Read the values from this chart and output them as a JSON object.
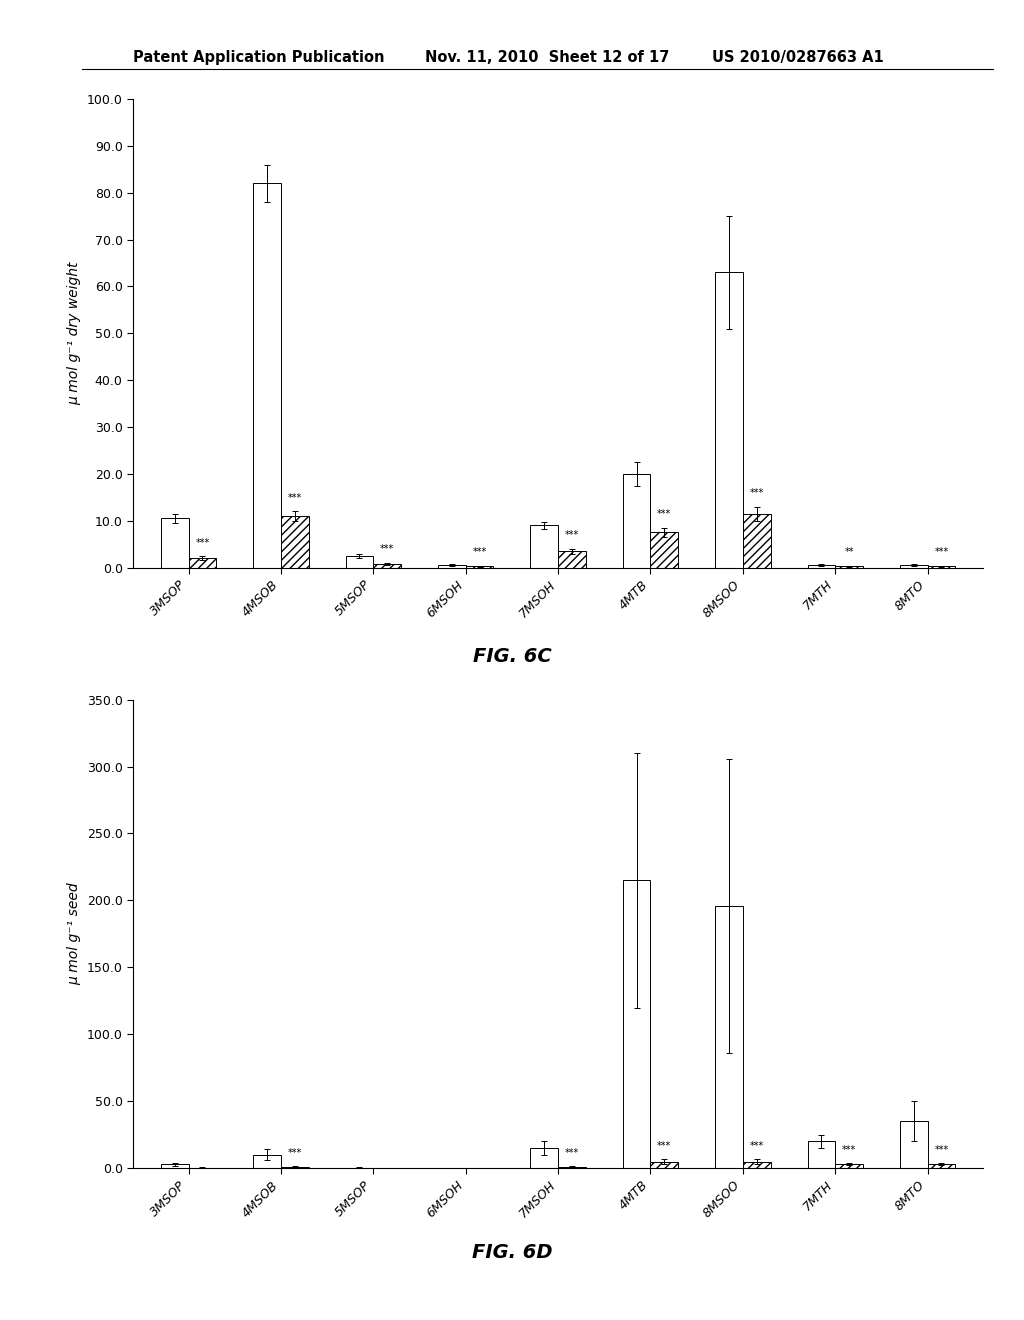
{
  "header_left": "Patent Application Publication",
  "header_mid": "Nov. 11, 2010  Sheet 12 of 17",
  "header_right": "US 2010/0287663 A1",
  "fig6c": {
    "title": "FIG. 6C",
    "ylabel": "μ mol g⁻¹ dry weight",
    "ylim": [
      0,
      100.0
    ],
    "yticks": [
      0.0,
      10.0,
      20.0,
      30.0,
      40.0,
      50.0,
      60.0,
      70.0,
      80.0,
      90.0,
      100.0
    ],
    "categories": [
      "3MSOP",
      "4MSOB",
      "5MSOP",
      "6MSOH",
      "7MSOH",
      "4MTB",
      "8MSOO",
      "7MTH",
      "8MTO"
    ],
    "bar1_values": [
      10.5,
      82.0,
      2.5,
      0.5,
      9.0,
      20.0,
      63.0,
      0.5,
      0.5
    ],
    "bar1_errors": [
      1.0,
      4.0,
      0.5,
      0.2,
      0.8,
      2.5,
      12.0,
      0.2,
      0.2
    ],
    "bar3_values": [
      2.0,
      11.0,
      0.8,
      0.3,
      3.5,
      7.5,
      11.5,
      0.3,
      0.3
    ],
    "bar3_errors": [
      0.4,
      1.0,
      0.2,
      0.1,
      0.5,
      1.0,
      1.5,
      0.1,
      0.1
    ],
    "sig_labels": [
      "***",
      "***",
      "***",
      "***",
      "***",
      "***",
      "***",
      "**",
      "***"
    ],
    "sig_below_bar3": true
  },
  "fig6d": {
    "title": "FIG. 6D",
    "ylabel": "μ mol g⁻¹ seed",
    "ylim": [
      0,
      350.0
    ],
    "yticks": [
      0.0,
      50.0,
      100.0,
      150.0,
      200.0,
      250.0,
      300.0,
      350.0
    ],
    "categories": [
      "3MSOP",
      "4MSOB",
      "5MSOP",
      "6MSOH",
      "7MSOH",
      "4MTB",
      "8MSOO",
      "7MTH",
      "8MTO"
    ],
    "bar1_values": [
      3.0,
      10.0,
      0.5,
      0.3,
      15.0,
      215.0,
      196.0,
      20.0,
      35.0
    ],
    "bar1_errors": [
      1.0,
      4.0,
      0.3,
      0.2,
      5.0,
      95.0,
      110.0,
      5.0,
      15.0
    ],
    "bar3_values": [
      0.5,
      1.0,
      0.2,
      0.1,
      1.0,
      5.0,
      5.0,
      3.0,
      3.0
    ],
    "bar3_errors": [
      0.2,
      0.3,
      0.1,
      0.05,
      0.3,
      1.5,
      1.5,
      0.8,
      0.8
    ],
    "sig_labels": [
      "",
      "***",
      "",
      "",
      "***",
      "***",
      "***",
      "***",
      "***"
    ],
    "sig_below_bar3": true
  },
  "bar_width": 0.3,
  "white_color": "#ffffff",
  "hatch_pattern": "////",
  "background_color": "#ffffff",
  "text_color": "#000000"
}
